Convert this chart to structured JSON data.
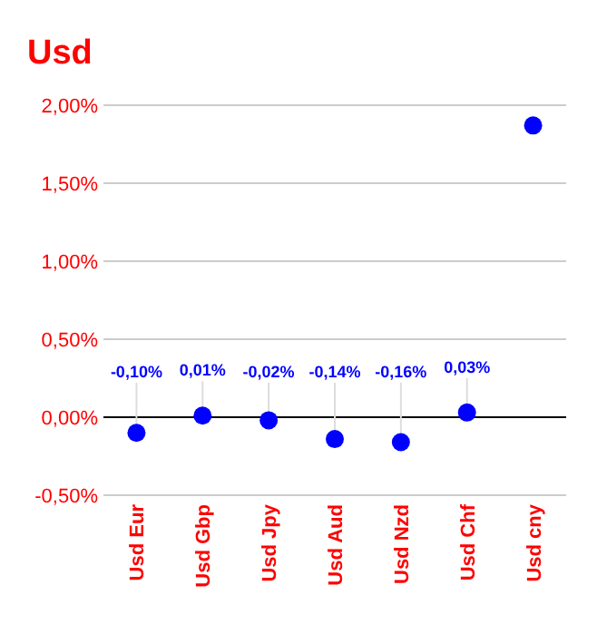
{
  "chart_data": {
    "type": "scatter",
    "title": "Usd",
    "categories": [
      "Usd Eur",
      "Usd Gbp",
      "Usd Jpy",
      "Usd Aud",
      "Usd Nzd",
      "Usd Chf",
      "Usd cny"
    ],
    "series": [
      {
        "color": "#0000ff",
        "values": [
          -0.1,
          0.01,
          -0.02,
          -0.14,
          -0.16,
          0.03,
          1.87
        ],
        "value_labels": [
          "-0,10%",
          "0,01%",
          "-0,02%",
          "-0,14%",
          "-0,16%",
          "0,03%",
          null
        ]
      }
    ],
    "ylim": [
      -0.5,
      2.0
    ],
    "yticks": [
      {
        "value": -0.5,
        "label": "-0,50%"
      },
      {
        "value": 0,
        "label": "0,00%"
      },
      {
        "value": 0.5,
        "label": "0,50%"
      },
      {
        "value": 1,
        "label": "1,00%"
      },
      {
        "value": 1.5,
        "label": "1,50%"
      },
      {
        "value": 2,
        "label": "2,00%"
      }
    ],
    "ref_lines": [
      {
        "axis": "y",
        "value": 0,
        "color": "#000000"
      }
    ],
    "grid": "y",
    "marker": "circle"
  }
}
